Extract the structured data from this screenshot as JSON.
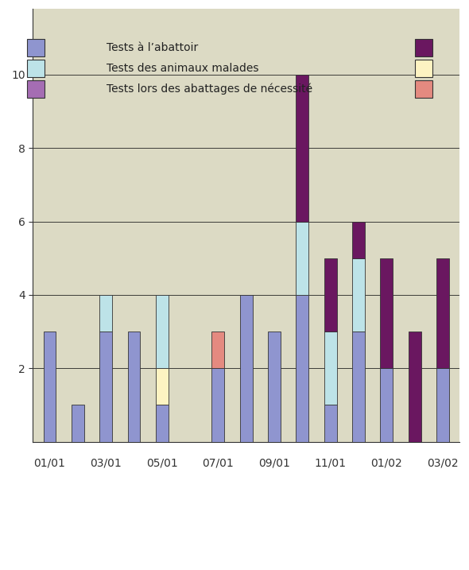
{
  "chart_data": {
    "type": "bar",
    "stacked": true,
    "grid": true,
    "categories": [
      "01/01",
      null,
      "03/01",
      null,
      "05/01",
      null,
      "07/01",
      null,
      "09/01",
      null,
      "11/01",
      null,
      "01/02",
      null,
      "03/02"
    ],
    "ylim": [
      0,
      11.8
    ],
    "yticks": [
      2,
      4,
      6,
      8,
      10
    ],
    "series": [
      {
        "name": "Tests à l’abattoir",
        "color": "#8f95cf",
        "values": [
          3,
          1,
          3,
          3,
          1,
          0,
          2,
          4,
          3,
          4,
          1,
          3,
          2,
          0,
          2
        ]
      },
      {
        "name": "Tests des animaux malades",
        "color": "#bde3e8",
        "values": [
          0,
          0,
          1,
          0,
          2,
          0,
          0,
          0,
          0,
          2,
          2,
          2,
          0,
          0,
          0
        ]
      },
      {
        "name": "Tests lors des abattages de nécessité",
        "color": "#a56db3",
        "values": [
          0,
          0,
          0,
          0,
          0,
          0,
          0,
          0,
          0,
          0,
          0,
          0,
          0,
          0,
          0
        ]
      },
      {
        "color": "#6a1760",
        "values": [
          0,
          0,
          0,
          0,
          0,
          0,
          0,
          0,
          0,
          4,
          2,
          1,
          3,
          3,
          3
        ]
      },
      {
        "color": "#fdf3c2",
        "values": [
          0,
          0,
          0,
          0,
          1,
          0,
          0,
          0,
          0,
          0,
          0,
          0,
          0,
          0,
          0
        ]
      },
      {
        "color": "#e48a80",
        "values": [
          0,
          0,
          0,
          0,
          0,
          0,
          1,
          0,
          0,
          0,
          0,
          0,
          0,
          0,
          0
        ]
      }
    ]
  }
}
